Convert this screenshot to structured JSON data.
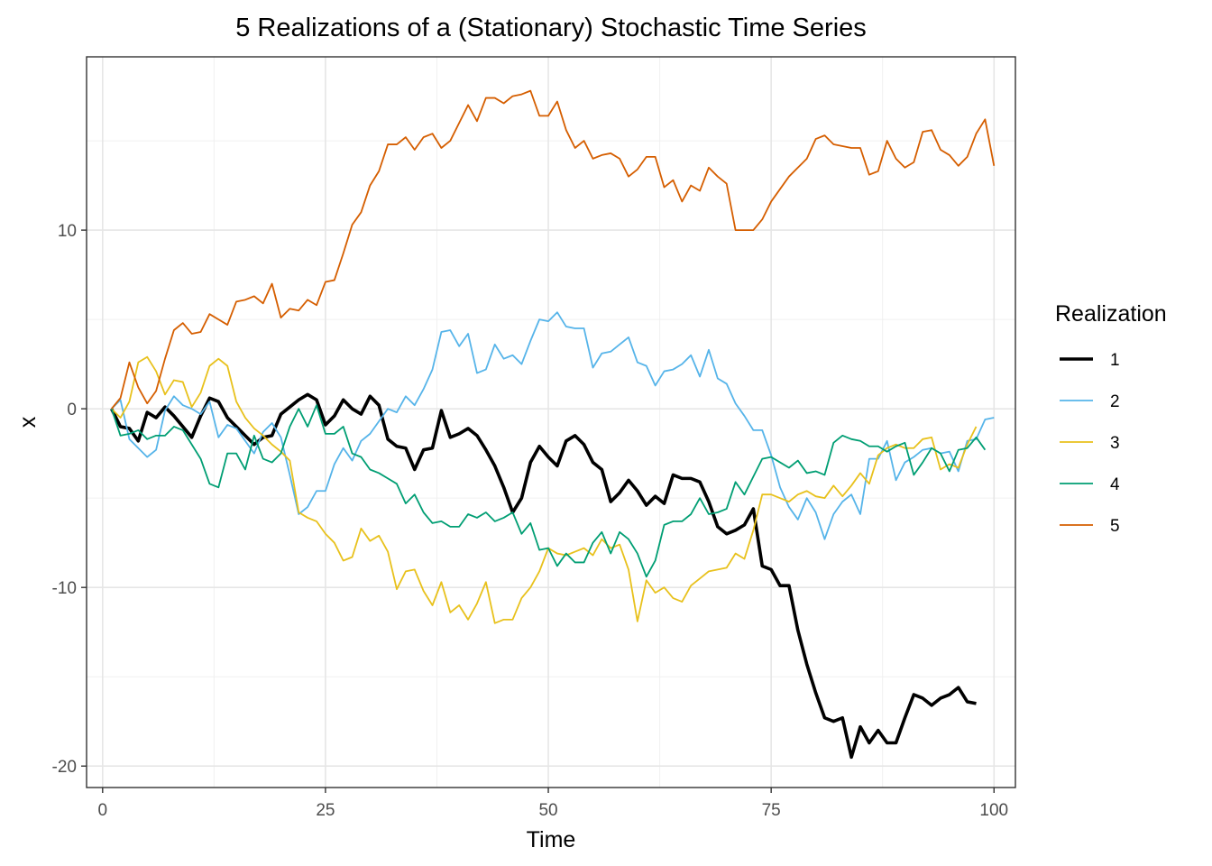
{
  "chart_data": {
    "type": "line",
    "title": "5 Realizations of a (Stationary) Stochastic Time Series",
    "xlabel": "Time",
    "ylabel": "x",
    "xlim": [
      -1.8,
      102.4
    ],
    "ylim": [
      -21.2,
      19.7
    ],
    "x_ticks": [
      0,
      25,
      50,
      75,
      100
    ],
    "x_tick_labels": [
      "0",
      "25",
      "50",
      "75",
      "100"
    ],
    "y_ticks": [
      -20,
      -10,
      0,
      10
    ],
    "y_tick_labels": [
      "-20",
      "-10",
      "0",
      "10"
    ],
    "grid": true,
    "legend_title": "Realization",
    "legend_position": "right",
    "x_start": 1,
    "x_step": 1,
    "series": [
      {
        "name": "1",
        "color": "#000000",
        "width": 3.6,
        "values": [
          0,
          -1.0,
          -1.1,
          -1.8,
          -0.2,
          -0.5,
          0.1,
          -0.4,
          -1.0,
          -1.6,
          -0.4,
          0.6,
          0.4,
          -0.5,
          -1.0,
          -1.5,
          -2.0,
          -1.6,
          -1.5,
          -0.3,
          0.1,
          0.5,
          0.8,
          0.5,
          -0.9,
          -0.4,
          0.5,
          0.0,
          -0.3,
          0.7,
          0.2,
          -1.7,
          -2.1,
          -2.2,
          -3.4,
          -2.3,
          -2.2,
          -0.1,
          -1.6,
          -1.4,
          -1.1,
          -1.5,
          -2.3,
          -3.2,
          -4.4,
          -5.8,
          -5.0,
          -3.0,
          -2.1,
          -2.7,
          -3.2,
          -1.8,
          -1.5,
          -2.0,
          -3.0,
          -3.4,
          -5.2,
          -4.7,
          -4.0,
          -4.6,
          -5.4,
          -4.9,
          -5.3,
          -3.7,
          -3.9,
          -3.9,
          -4.1,
          -5.2,
          -6.6,
          -7.0,
          -6.8,
          -6.5,
          -5.6,
          -8.8,
          -9.0,
          -9.9,
          -9.9,
          -12.4,
          -14.3,
          -15.9,
          -17.3,
          -17.5,
          -17.3,
          -19.5,
          -17.8,
          -18.7,
          -18.0,
          -18.7,
          -18.7,
          -17.3,
          -16.0,
          -16.2,
          -16.6,
          -16.2,
          -16.0,
          -15.6,
          -16.4,
          -16.5
        ]
      },
      {
        "name": "2",
        "color": "#56B4E9",
        "width": 1.8,
        "values": [
          0,
          0.5,
          -1.7,
          -2.2,
          -2.7,
          -2.3,
          -0.1,
          0.7,
          0.2,
          0.0,
          -0.3,
          0.4,
          -1.6,
          -0.9,
          -1.1,
          -1.8,
          -2.5,
          -1.3,
          -0.8,
          -1.6,
          -3.7,
          -5.9,
          -5.5,
          -4.6,
          -4.6,
          -3.1,
          -2.2,
          -2.9,
          -1.8,
          -1.4,
          -0.7,
          0.0,
          -0.2,
          0.7,
          0.2,
          1.1,
          2.2,
          4.3,
          4.4,
          3.5,
          4.2,
          2.0,
          2.2,
          3.6,
          2.8,
          3.0,
          2.5,
          3.8,
          5.0,
          4.9,
          5.4,
          4.6,
          4.5,
          4.5,
          2.3,
          3.1,
          3.2,
          3.6,
          4.0,
          2.6,
          2.4,
          1.3,
          2.1,
          2.2,
          2.5,
          3.0,
          1.8,
          3.3,
          1.7,
          1.4,
          0.3,
          -0.4,
          -1.2,
          -1.2,
          -2.6,
          -4.4,
          -5.5,
          -6.2,
          -5.0,
          -5.8,
          -7.3,
          -5.9,
          -5.2,
          -4.8,
          -5.9,
          -2.8,
          -2.8,
          -1.8,
          -4.0,
          -3.0,
          -2.7,
          -2.3,
          -2.2,
          -2.5,
          -2.4,
          -3.5,
          -1.8,
          -1.7,
          -0.6,
          -0.5
        ]
      },
      {
        "name": "3",
        "color": "#E8C11C",
        "width": 1.8,
        "values": [
          0,
          -0.5,
          0.4,
          2.6,
          2.9,
          2.1,
          0.8,
          1.6,
          1.5,
          0.1,
          0.9,
          2.4,
          2.8,
          2.4,
          0.4,
          -0.5,
          -1.1,
          -1.5,
          -2.0,
          -2.4,
          -2.9,
          -5.8,
          -6.1,
          -6.3,
          -7.0,
          -7.5,
          -8.5,
          -8.3,
          -6.7,
          -7.4,
          -7.1,
          -8.0,
          -10.1,
          -9.1,
          -9.0,
          -10.2,
          -11.0,
          -9.7,
          -11.4,
          -11.0,
          -11.8,
          -10.9,
          -9.7,
          -12.0,
          -11.8,
          -11.8,
          -10.6,
          -10.0,
          -9.1,
          -7.8,
          -8.1,
          -8.2,
          -8.0,
          -7.8,
          -8.2,
          -7.3,
          -7.8,
          -7.6,
          -9.0,
          -11.9,
          -9.6,
          -10.3,
          -10.0,
          -10.6,
          -10.8,
          -9.9,
          -9.5,
          -9.1,
          -9.0,
          -8.9,
          -8.1,
          -8.4,
          -6.8,
          -4.8,
          -4.8,
          -5.0,
          -5.2,
          -4.8,
          -4.6,
          -4.9,
          -5.0,
          -4.3,
          -4.9,
          -4.3,
          -3.6,
          -4.2,
          -2.6,
          -2.2,
          -2.0,
          -2.2,
          -2.2,
          -1.7,
          -1.6,
          -3.4,
          -3.1,
          -3.3,
          -2.0,
          -1.0
        ]
      },
      {
        "name": "4",
        "color": "#009E73",
        "width": 1.8,
        "values": [
          0,
          -1.5,
          -1.4,
          -1.2,
          -1.7,
          -1.5,
          -1.5,
          -1.0,
          -1.2,
          -2.0,
          -2.8,
          -4.2,
          -4.4,
          -2.5,
          -2.5,
          -3.4,
          -1.5,
          -2.8,
          -3.0,
          -2.5,
          -1.0,
          0.0,
          -1.0,
          0.2,
          -1.4,
          -1.4,
          -1.0,
          -2.5,
          -2.7,
          -3.4,
          -3.6,
          -3.9,
          -4.2,
          -5.3,
          -4.8,
          -5.8,
          -6.4,
          -6.3,
          -6.6,
          -6.6,
          -5.9,
          -6.1,
          -5.8,
          -6.3,
          -6.1,
          -5.8,
          -7.0,
          -6.4,
          -7.9,
          -7.8,
          -8.8,
          -8.1,
          -8.6,
          -8.6,
          -7.5,
          -6.9,
          -8.1,
          -6.9,
          -7.3,
          -8.1,
          -9.4,
          -8.5,
          -6.5,
          -6.3,
          -6.3,
          -5.9,
          -5.0,
          -5.9,
          -5.8,
          -5.6,
          -4.1,
          -4.8,
          -3.8,
          -2.8,
          -2.7,
          -3.0,
          -3.3,
          -2.9,
          -3.6,
          -3.5,
          -3.7,
          -1.9,
          -1.5,
          -1.7,
          -1.8,
          -2.1,
          -2.1,
          -2.4,
          -2.1,
          -1.9,
          -3.7,
          -3.0,
          -2.2,
          -2.5,
          -3.5,
          -2.3,
          -2.2,
          -1.6,
          -2.3
        ]
      },
      {
        "name": "5",
        "color": "#D55E00",
        "width": 1.8,
        "values": [
          0,
          0.6,
          2.6,
          1.2,
          0.3,
          1.0,
          2.8,
          4.4,
          4.8,
          4.2,
          4.3,
          5.3,
          5.0,
          4.7,
          6.0,
          6.1,
          6.3,
          5.9,
          7.0,
          5.1,
          5.6,
          5.5,
          6.1,
          5.8,
          7.1,
          7.2,
          8.7,
          10.3,
          11.0,
          12.5,
          13.3,
          14.8,
          14.8,
          15.2,
          14.5,
          15.2,
          15.4,
          14.6,
          15.0,
          16.0,
          17.0,
          16.1,
          17.4,
          17.4,
          17.1,
          17.5,
          17.6,
          17.8,
          16.4,
          16.4,
          17.2,
          15.6,
          14.6,
          15.0,
          14.0,
          14.2,
          14.3,
          14.0,
          13.0,
          13.4,
          14.1,
          14.1,
          12.4,
          12.8,
          11.6,
          12.5,
          12.2,
          13.5,
          13.0,
          12.6,
          10.0,
          10.0,
          10.0,
          10.6,
          11.6,
          12.3,
          13.0,
          13.5,
          14.0,
          15.1,
          15.3,
          14.8,
          14.7,
          14.6,
          14.6,
          13.1,
          13.3,
          15.0,
          14.0,
          13.5,
          13.8,
          15.5,
          15.6,
          14.5,
          14.2,
          13.6,
          14.1,
          15.4,
          16.2,
          13.6
        ]
      }
    ]
  }
}
